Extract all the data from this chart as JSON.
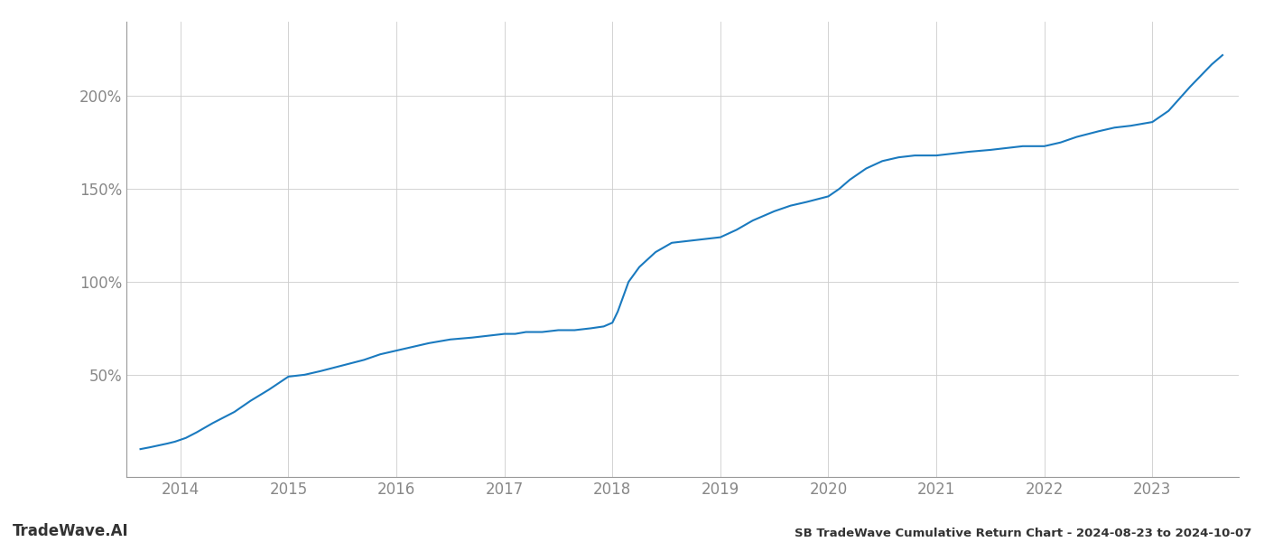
{
  "title": "SB TradeWave Cumulative Return Chart - 2024-08-23 to 2024-10-07",
  "watermark": "TradeWave.AI",
  "line_color": "#1a7abf",
  "line_width": 1.5,
  "background_color": "#ffffff",
  "grid_color": "#cccccc",
  "x_years": [
    2014,
    2015,
    2016,
    2017,
    2018,
    2019,
    2020,
    2021,
    2022,
    2023
  ],
  "x_data": [
    2013.63,
    2013.72,
    2013.8,
    2013.88,
    2013.95,
    2014.05,
    2014.15,
    2014.3,
    2014.5,
    2014.65,
    2014.82,
    2015.0,
    2015.15,
    2015.3,
    2015.5,
    2015.7,
    2015.85,
    2016.0,
    2016.15,
    2016.3,
    2016.5,
    2016.7,
    2016.85,
    2017.0,
    2017.05,
    2017.1,
    2017.2,
    2017.35,
    2017.5,
    2017.65,
    2017.8,
    2017.92,
    2018.0,
    2018.05,
    2018.1,
    2018.15,
    2018.25,
    2018.4,
    2018.55,
    2018.7,
    2018.85,
    2019.0,
    2019.15,
    2019.3,
    2019.5,
    2019.65,
    2019.8,
    2020.0,
    2020.1,
    2020.2,
    2020.35,
    2020.5,
    2020.65,
    2020.8,
    2021.0,
    2021.15,
    2021.3,
    2021.5,
    2021.65,
    2021.8,
    2022.0,
    2022.15,
    2022.3,
    2022.5,
    2022.65,
    2022.8,
    2023.0,
    2023.15,
    2023.35,
    2023.55,
    2023.65
  ],
  "y_data": [
    10,
    11,
    12,
    13,
    14,
    16,
    19,
    24,
    30,
    36,
    42,
    49,
    50,
    52,
    55,
    58,
    61,
    63,
    65,
    67,
    69,
    70,
    71,
    72,
    72,
    72,
    73,
    73,
    74,
    74,
    75,
    76,
    78,
    84,
    92,
    100,
    108,
    116,
    121,
    122,
    123,
    124,
    128,
    133,
    138,
    141,
    143,
    146,
    150,
    155,
    161,
    165,
    167,
    168,
    168,
    169,
    170,
    171,
    172,
    173,
    173,
    175,
    178,
    181,
    183,
    184,
    186,
    192,
    205,
    217,
    222
  ],
  "ylim": [
    -5,
    240
  ],
  "xlim": [
    2013.5,
    2023.8
  ],
  "yticks": [
    50,
    100,
    150,
    200
  ],
  "ytick_labels": [
    "50%",
    "100%",
    "150%",
    "200%"
  ],
  "title_fontsize": 9.5,
  "tick_fontsize": 12,
  "watermark_fontsize": 12,
  "spine_color": "#999999"
}
